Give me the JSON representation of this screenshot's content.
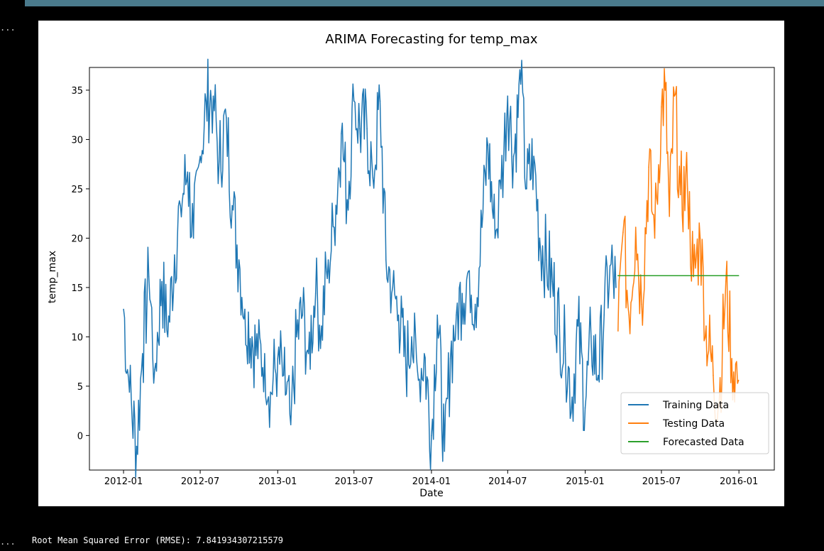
{
  "notebook": {
    "cell_ellipsis_top": "...",
    "cell_ellipsis_bottom": "...",
    "output_text": "Root Mean Squared Error (RMSE): 7.841934307215579"
  },
  "colors": {
    "training": "#1f77b4",
    "testing": "#ff7f0e",
    "forecast": "#2ca02c",
    "top_bar": "#4a7a8c"
  },
  "chart_data": {
    "type": "line",
    "title": "ARIMA Forecasting for temp_max",
    "xlabel": "Date",
    "ylabel": "temp_max",
    "ylim": [
      -3.5,
      37.3
    ],
    "xlim": [
      "2011-10-12",
      "2016-03-25"
    ],
    "x_ticks": [
      "2012-01",
      "2012-07",
      "2013-01",
      "2013-07",
      "2014-01",
      "2014-07",
      "2015-01",
      "2015-07",
      "2016-01"
    ],
    "y_ticks": [
      0,
      5,
      10,
      15,
      20,
      25,
      30,
      35
    ],
    "grid": false,
    "legend_position": "lower-right",
    "series": [
      {
        "name": "Training Data",
        "color_key": "training",
        "x": [
          "2012-01-01",
          "2012-01-15",
          "2012-02-01",
          "2012-02-15",
          "2012-03-01",
          "2012-03-15",
          "2012-04-01",
          "2012-04-15",
          "2012-05-01",
          "2012-05-15",
          "2012-06-01",
          "2012-06-15",
          "2012-07-01",
          "2012-07-15",
          "2012-08-01",
          "2012-08-15",
          "2012-09-01",
          "2012-09-15",
          "2012-10-01",
          "2012-10-15",
          "2012-11-01",
          "2012-11-15",
          "2012-12-01",
          "2012-12-15",
          "2013-01-01",
          "2013-01-15",
          "2013-02-01",
          "2013-02-15",
          "2013-03-01",
          "2013-03-15",
          "2013-04-01",
          "2013-04-15",
          "2013-05-01",
          "2013-05-15",
          "2013-06-01",
          "2013-06-15",
          "2013-07-01",
          "2013-07-15",
          "2013-08-01",
          "2013-08-15",
          "2013-09-01",
          "2013-09-15",
          "2013-10-01",
          "2013-10-15",
          "2013-11-01",
          "2013-11-15",
          "2013-12-01",
          "2013-12-15",
          "2014-01-01",
          "2014-01-15",
          "2014-02-01",
          "2014-02-15",
          "2014-03-01",
          "2014-03-15",
          "2014-04-01",
          "2014-04-15",
          "2014-05-01",
          "2014-05-15",
          "2014-06-01",
          "2014-06-15",
          "2014-07-01",
          "2014-07-15",
          "2014-08-01",
          "2014-08-15",
          "2014-09-01",
          "2014-09-15",
          "2014-10-01",
          "2014-10-15",
          "2014-11-01",
          "2014-11-15",
          "2014-12-01",
          "2014-12-15",
          "2015-01-01",
          "2015-01-15",
          "2015-02-01",
          "2015-02-15",
          "2015-03-01",
          "2015-03-15"
        ],
        "values": [
          12.8,
          4.4,
          -1.1,
          8.3,
          16.1,
          6.7,
          15.6,
          10.0,
          18.3,
          23.3,
          26.7,
          20.0,
          28.3,
          33.9,
          34.4,
          27.8,
          32.2,
          23.3,
          17.8,
          12.8,
          10.0,
          7.8,
          8.3,
          4.4,
          7.8,
          6.1,
          1.1,
          10.0,
          12.2,
          8.3,
          14.4,
          11.1,
          17.8,
          21.1,
          30.6,
          23.9,
          33.9,
          31.1,
          31.1,
          26.1,
          33.9,
          17.8,
          15.0,
          12.2,
          7.2,
          10.0,
          5.6,
          8.3,
          0.0,
          12.2,
          -1.6,
          7.8,
          12.2,
          14.4,
          16.7,
          13.3,
          21.1,
          29.4,
          20.0,
          25.0,
          34.4,
          28.3,
          35.6,
          25.0,
          28.3,
          20.0,
          17.8,
          15.6,
          11.1,
          8.3,
          3.9,
          11.1,
          2.8,
          10.0,
          6.1,
          12.2,
          17.2,
          15.0
        ]
      },
      {
        "name": "Testing Data",
        "color_key": "testing",
        "x": [
          "2015-03-20",
          "2015-04-01",
          "2015-04-15",
          "2015-05-01",
          "2015-05-15",
          "2015-06-01",
          "2015-06-15",
          "2015-07-01",
          "2015-07-10",
          "2015-07-20",
          "2015-08-01",
          "2015-08-15",
          "2015-09-01",
          "2015-09-15",
          "2015-10-01",
          "2015-10-15",
          "2015-11-01",
          "2015-11-15",
          "2015-12-01",
          "2015-12-15",
          "2015-12-31"
        ],
        "values": [
          10.6,
          20.6,
          12.2,
          21.1,
          13.3,
          27.2,
          20.0,
          33.3,
          35.0,
          22.2,
          34.4,
          24.4,
          25.0,
          16.1,
          20.0,
          11.1,
          6.1,
          3.3,
          15.6,
          7.8,
          5.6
        ]
      },
      {
        "name": "Forecasted Data",
        "color_key": "forecast",
        "x": [
          "2015-03-20",
          "2015-12-31"
        ],
        "values": [
          16.2,
          16.2
        ]
      }
    ]
  }
}
